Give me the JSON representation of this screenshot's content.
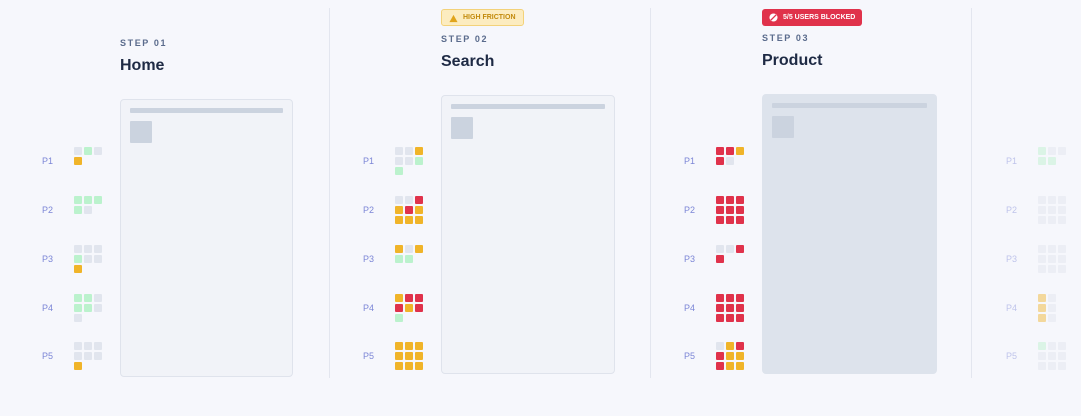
{
  "steps": [
    {
      "label": "STEP 01",
      "title": "Home"
    },
    {
      "label": "STEP 02",
      "title": "Search",
      "badge": "HIGH FRICTION"
    },
    {
      "label": "STEP 03",
      "title": "Product",
      "badge": "5/5 USERS BLOCKED"
    }
  ],
  "personas": [
    "P1",
    "P2",
    "P3",
    "P4",
    "P5"
  ]
}
